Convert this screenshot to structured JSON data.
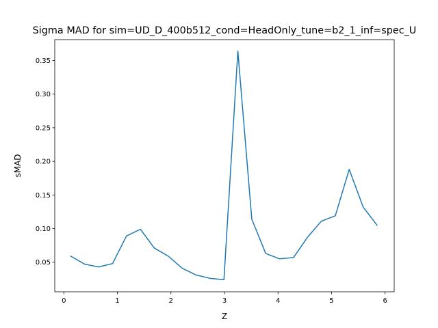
{
  "chart_data": {
    "type": "line",
    "title": "Sigma MAD for sim=UD_D_400b512_cond=HeadOnly_tune=b2_1_inf=spec_U",
    "xlabel": "Z",
    "ylabel": "sMAD",
    "xlim": [
      -0.17,
      6.17
    ],
    "ylim": [
      0.006,
      0.381
    ],
    "xticks": [
      0,
      1,
      2,
      3,
      4,
      5,
      6
    ],
    "yticks": [
      0.05,
      0.1,
      0.15,
      0.2,
      0.25,
      0.3,
      0.35
    ],
    "ytick_labels": [
      "0.05",
      "0.10",
      "0.15",
      "0.20",
      "0.25",
      "0.30",
      "0.35"
    ],
    "grid": false,
    "line_color": "#1f77b4",
    "series": [
      {
        "x": [
          0.13,
          0.39,
          0.65,
          0.91,
          1.17,
          1.43,
          1.69,
          1.95,
          2.21,
          2.47,
          2.73,
          2.99,
          3.25,
          3.51,
          3.77,
          4.03,
          4.29,
          4.55,
          4.81,
          5.07,
          5.33,
          5.59,
          5.85
        ],
        "values": [
          0.059,
          0.047,
          0.043,
          0.048,
          0.089,
          0.099,
          0.071,
          0.059,
          0.041,
          0.031,
          0.026,
          0.024,
          0.364,
          0.114,
          0.063,
          0.055,
          0.057,
          0.087,
          0.111,
          0.119,
          0.188,
          0.132,
          0.105
        ]
      }
    ]
  }
}
